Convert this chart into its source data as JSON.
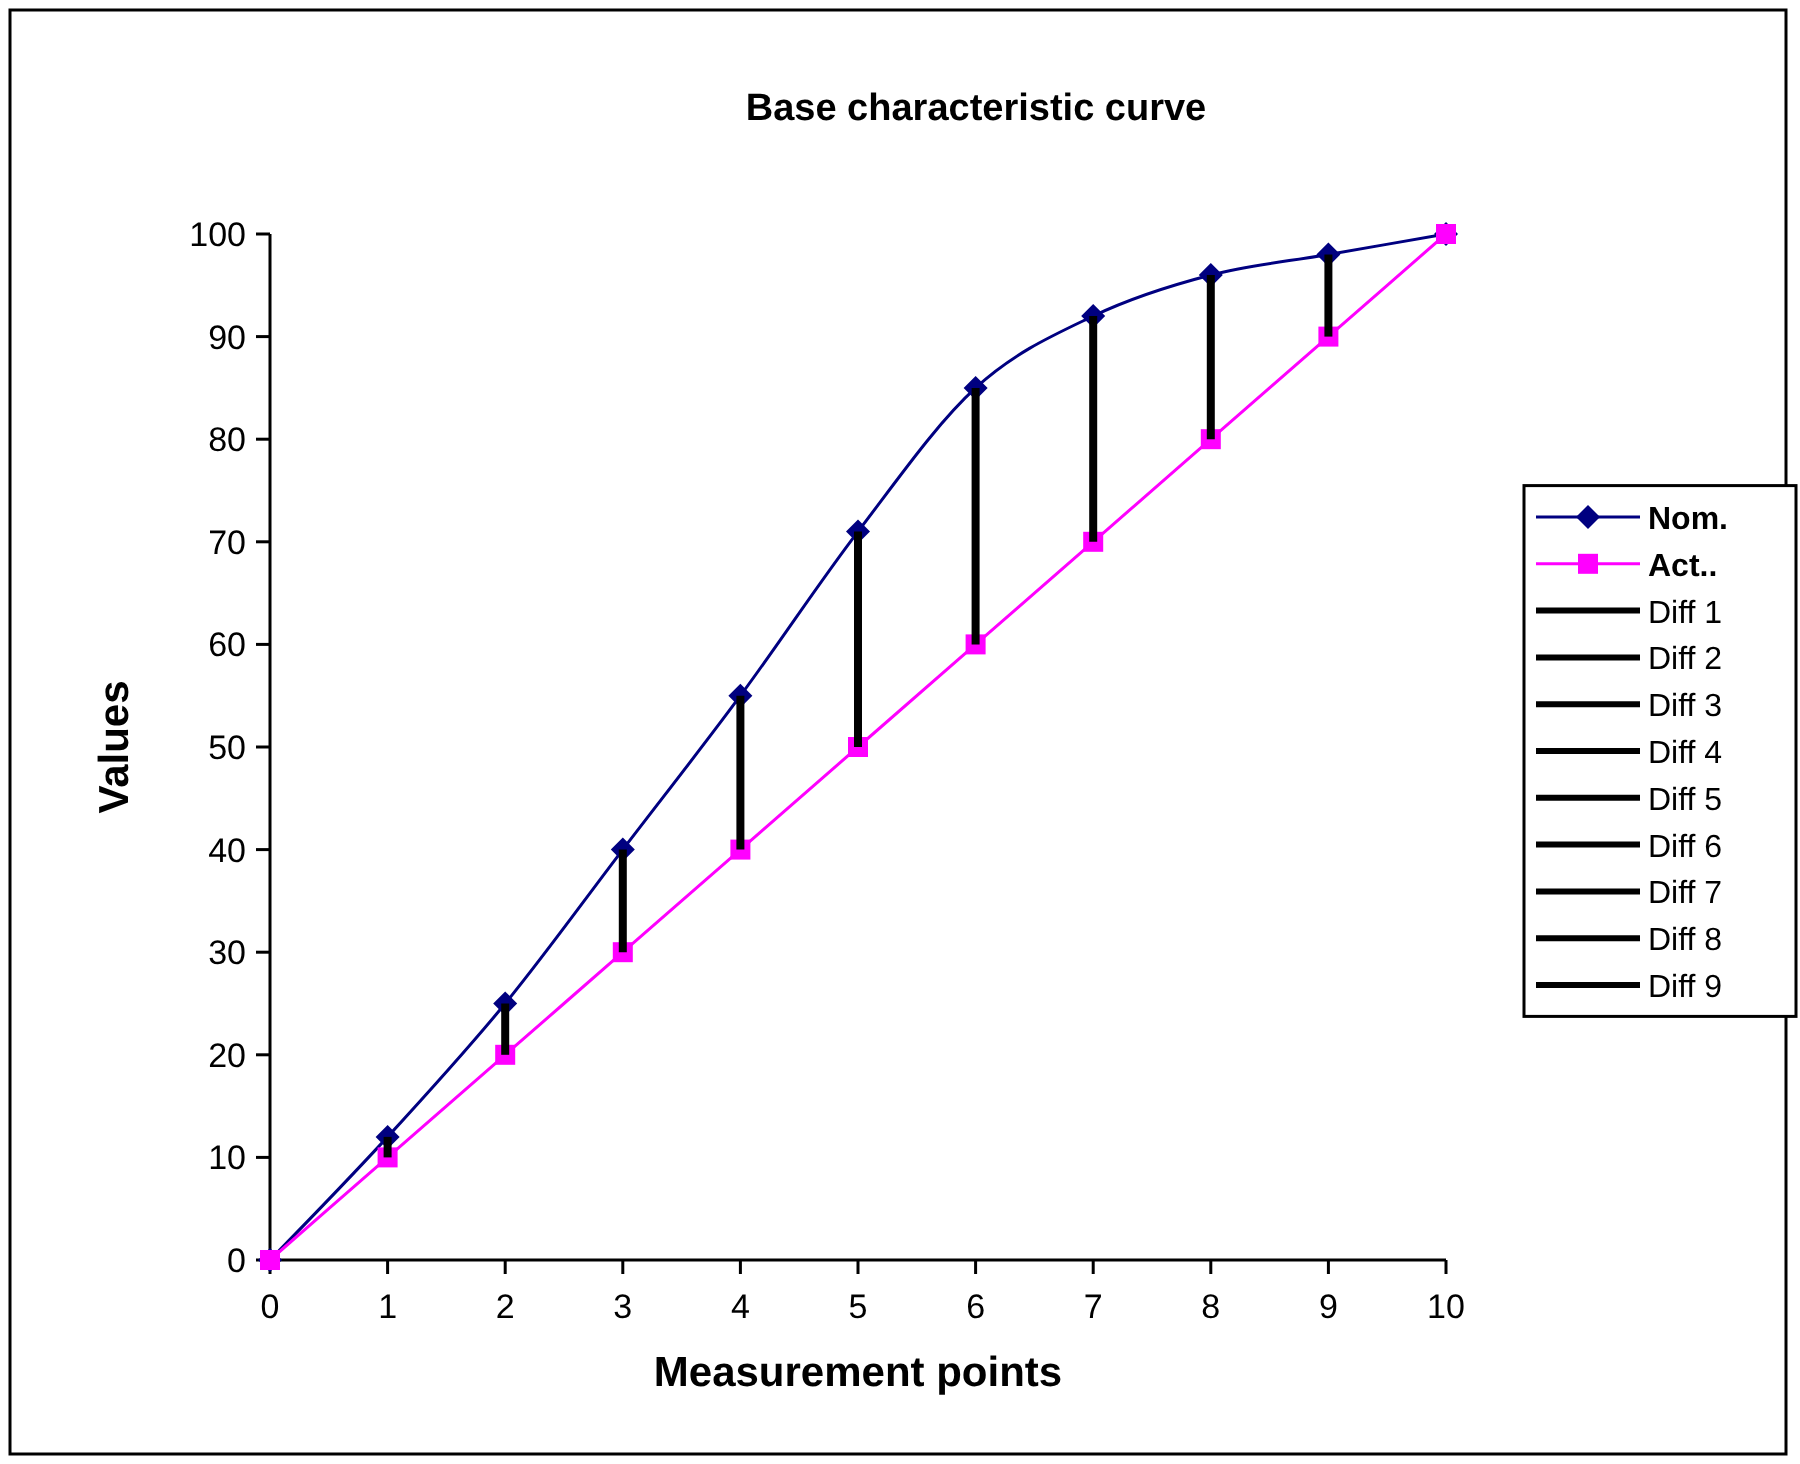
{
  "chart_data": {
    "type": "line",
    "title": "Base characteristic curve",
    "xlabel": "Measurement points",
    "ylabel": "Values",
    "x": [
      0,
      1,
      2,
      3,
      4,
      5,
      6,
      7,
      8,
      9,
      10
    ],
    "series": [
      {
        "name": "Nom.",
        "color": "#000080",
        "marker": "diamond",
        "values": [
          0,
          12,
          25,
          40,
          55,
          71,
          85,
          92,
          96,
          98,
          100
        ]
      },
      {
        "name": "Act..",
        "color": "#ff00ff",
        "marker": "square",
        "values": [
          0,
          10,
          20,
          30,
          40,
          50,
          60,
          70,
          80,
          90,
          100
        ]
      },
      {
        "name": "Diff 1",
        "color": "#000000",
        "marker": "none",
        "x": [
          1,
          1
        ],
        "values": [
          10,
          12
        ]
      },
      {
        "name": "Diff 2",
        "color": "#000000",
        "marker": "none",
        "x": [
          2,
          2
        ],
        "values": [
          20,
          25
        ]
      },
      {
        "name": "Diff 3",
        "color": "#000000",
        "marker": "none",
        "x": [
          3,
          3
        ],
        "values": [
          30,
          40
        ]
      },
      {
        "name": "Diff 4",
        "color": "#000000",
        "marker": "none",
        "x": [
          4,
          4
        ],
        "values": [
          40,
          55
        ]
      },
      {
        "name": "Diff 5",
        "color": "#000000",
        "marker": "none",
        "x": [
          5,
          5
        ],
        "values": [
          50,
          71
        ]
      },
      {
        "name": "Diff 6",
        "color": "#000000",
        "marker": "none",
        "x": [
          6,
          6
        ],
        "values": [
          60,
          85
        ]
      },
      {
        "name": "Diff 7",
        "color": "#000000",
        "marker": "none",
        "x": [
          7,
          7
        ],
        "values": [
          70,
          92
        ]
      },
      {
        "name": "Diff 8",
        "color": "#000000",
        "marker": "none",
        "x": [
          8,
          8
        ],
        "values": [
          80,
          96
        ]
      },
      {
        "name": "Diff 9",
        "color": "#000000",
        "marker": "none",
        "x": [
          9,
          9
        ],
        "values": [
          90,
          98
        ]
      }
    ],
    "xlim": [
      0,
      10
    ],
    "xticks": [
      0,
      1,
      2,
      3,
      4,
      5,
      6,
      7,
      8,
      9,
      10
    ],
    "ylim": [
      0,
      100
    ],
    "yticks": [
      0,
      10,
      20,
      30,
      40,
      50,
      60,
      70,
      80,
      90,
      100
    ],
    "grid": false,
    "legend": "right"
  }
}
